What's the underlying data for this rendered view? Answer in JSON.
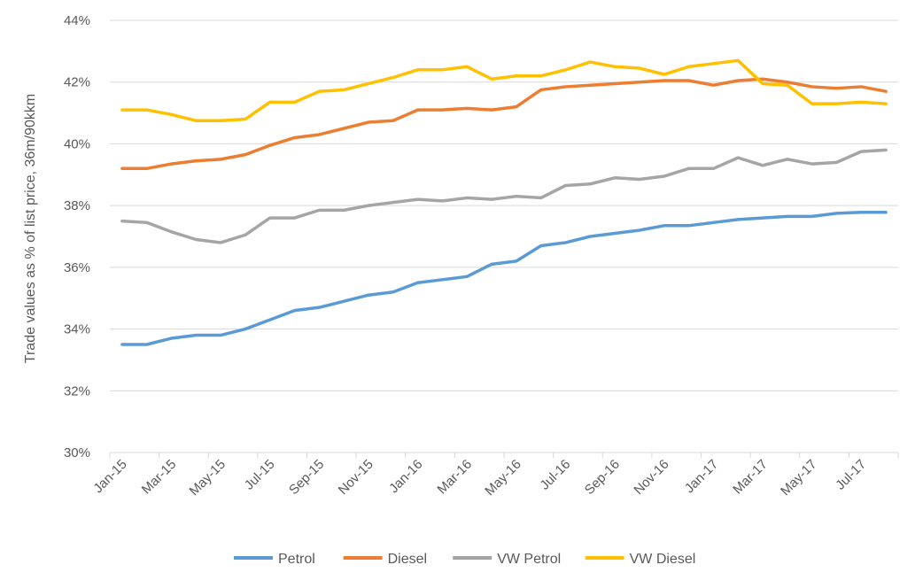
{
  "chart_data": {
    "type": "line",
    "title": "",
    "xlabel": "",
    "ylabel": "Trade values as % of list price, 36m/90kkm",
    "ylim": [
      30,
      44
    ],
    "y_ticks": [
      "30%",
      "32%",
      "34%",
      "36%",
      "38%",
      "40%",
      "42%",
      "44%"
    ],
    "y_tick_values": [
      30,
      32,
      34,
      36,
      38,
      40,
      42,
      44
    ],
    "x": [
      "Jan-15",
      "Feb-15",
      "Mar-15",
      "Apr-15",
      "May-15",
      "Jun-15",
      "Jul-15",
      "Aug-15",
      "Sep-15",
      "Oct-15",
      "Nov-15",
      "Dec-15",
      "Jan-16",
      "Feb-16",
      "Mar-16",
      "Apr-16",
      "May-16",
      "Jun-16",
      "Jul-16",
      "Aug-16",
      "Sep-16",
      "Oct-16",
      "Nov-16",
      "Dec-16",
      "Jan-17",
      "Feb-17",
      "Mar-17",
      "Apr-17",
      "May-17",
      "Jun-17",
      "Jul-17",
      "Aug-17"
    ],
    "x_tick_labels": [
      {
        "index": 0,
        "label": "Jan-15"
      },
      {
        "index": 2,
        "label": "Mar-15"
      },
      {
        "index": 4,
        "label": "May-15"
      },
      {
        "index": 6,
        "label": "Jul-15"
      },
      {
        "index": 8,
        "label": "Sep-15"
      },
      {
        "index": 10,
        "label": "Nov-15"
      },
      {
        "index": 12,
        "label": "Jan-16"
      },
      {
        "index": 14,
        "label": "Mar-16"
      },
      {
        "index": 16,
        "label": "May-16"
      },
      {
        "index": 18,
        "label": "Jul-16"
      },
      {
        "index": 20,
        "label": "Sep-16"
      },
      {
        "index": 22,
        "label": "Nov-16"
      },
      {
        "index": 24,
        "label": "Jan-17"
      },
      {
        "index": 26,
        "label": "Mar-17"
      },
      {
        "index": 28,
        "label": "May-17"
      },
      {
        "index": 30,
        "label": "Jul-17"
      }
    ],
    "grid": true,
    "legend_position": "bottom",
    "series": [
      {
        "name": "Petrol",
        "color": "#5b9bd5",
        "values": [
          33.5,
          33.5,
          33.7,
          33.8,
          33.8,
          34.0,
          34.3,
          34.6,
          34.7,
          34.9,
          35.1,
          35.2,
          35.5,
          35.6,
          35.7,
          36.1,
          36.2,
          36.7,
          36.8,
          37.0,
          37.1,
          37.2,
          37.35,
          37.35,
          37.45,
          37.55,
          37.6,
          37.65,
          37.65,
          37.75,
          37.78,
          37.78
        ]
      },
      {
        "name": "Diesel",
        "color": "#ed7d31",
        "values": [
          39.2,
          39.2,
          39.35,
          39.45,
          39.5,
          39.65,
          39.95,
          40.2,
          40.3,
          40.5,
          40.7,
          40.75,
          41.1,
          41.1,
          41.15,
          41.1,
          41.2,
          41.75,
          41.85,
          41.9,
          41.95,
          42.0,
          42.05,
          42.05,
          41.9,
          42.05,
          42.1,
          42.0,
          41.85,
          41.8,
          41.85,
          41.7
        ]
      },
      {
        "name": "VW Petrol",
        "color": "#a5a5a5",
        "values": [
          37.5,
          37.45,
          37.15,
          36.9,
          36.8,
          37.05,
          37.6,
          37.6,
          37.85,
          37.85,
          38.0,
          38.1,
          38.2,
          38.15,
          38.25,
          38.2,
          38.3,
          38.25,
          38.65,
          38.7,
          38.9,
          38.85,
          38.95,
          39.2,
          39.2,
          39.55,
          39.3,
          39.5,
          39.35,
          39.4,
          39.75,
          39.8
        ]
      },
      {
        "name": "VW Diesel",
        "color": "#ffc000",
        "values": [
          41.1,
          41.1,
          40.95,
          40.75,
          40.75,
          40.8,
          41.35,
          41.35,
          41.7,
          41.75,
          41.95,
          42.15,
          42.4,
          42.4,
          42.5,
          42.1,
          42.2,
          42.2,
          42.4,
          42.65,
          42.5,
          42.45,
          42.25,
          42.5,
          42.6,
          42.7,
          41.95,
          41.9,
          41.3,
          41.3,
          41.35,
          41.3
        ]
      }
    ]
  }
}
